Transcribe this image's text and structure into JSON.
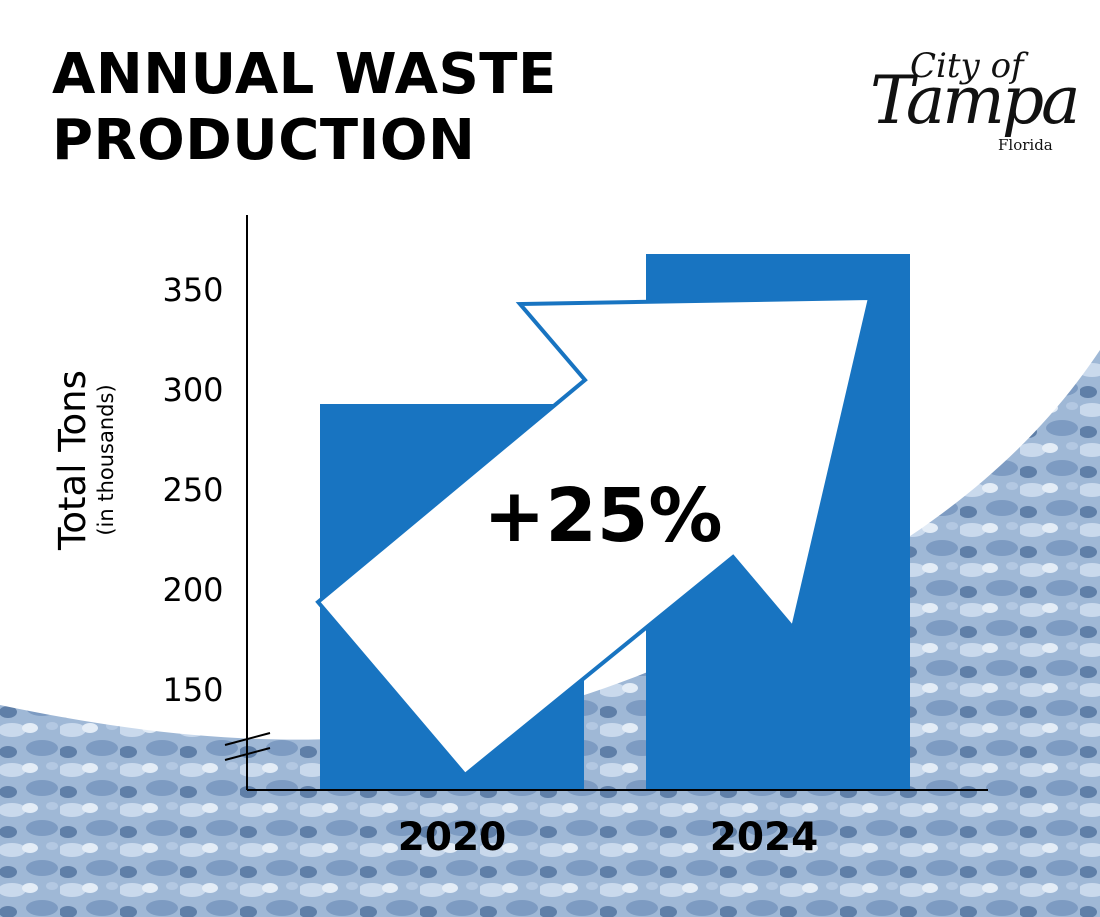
{
  "title_lines": [
    "ANNUAL WASTE",
    "PRODUCTION"
  ],
  "logo": {
    "city": "City of",
    "name": "Tampa",
    "state": "Florida"
  },
  "colors": {
    "bar": "#1874c1",
    "arrow_outline": "#1874c1",
    "background_curve": "#a9c3e6",
    "text": "#000000"
  },
  "chart_data": {
    "type": "bar",
    "title": "ANNUAL WASTE PRODUCTION",
    "ylabel": "Total Tons",
    "ylabel_sub": "(in thousands)",
    "xlabel": "",
    "categories": [
      "2020",
      "2024"
    ],
    "values": [
      293,
      368
    ],
    "yticks": [
      150,
      200,
      250,
      300,
      350
    ],
    "ylim": [
      115,
      380
    ],
    "axis_break": true,
    "grid": false,
    "legend": "none",
    "annotation": "+25%",
    "annotation_shape": "arrow"
  }
}
